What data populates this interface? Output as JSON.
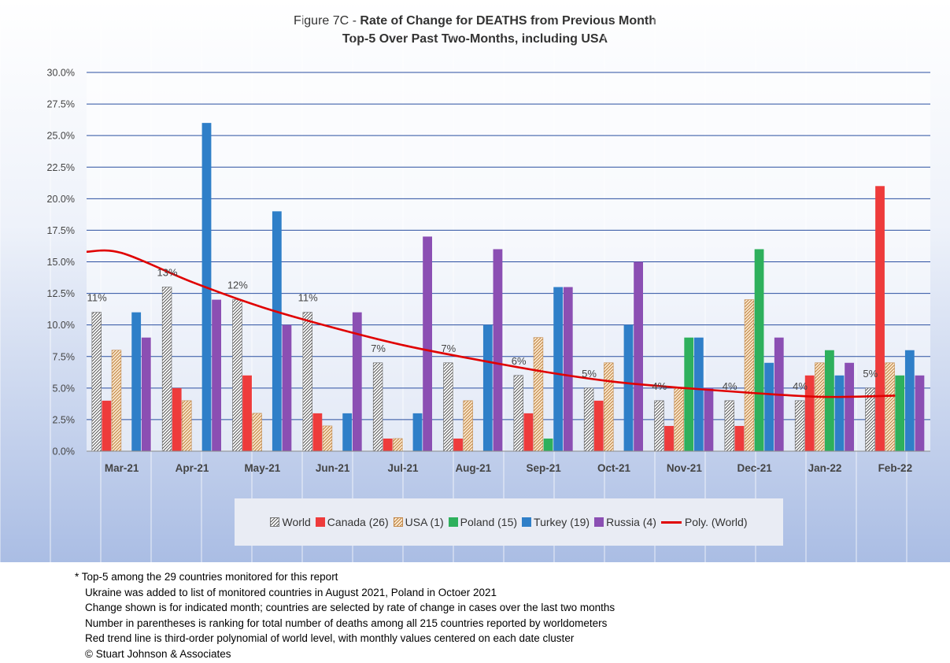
{
  "chart_data": {
    "type": "bar",
    "title_prefix": "Figure 7C - ",
    "title_main": "Rate of Change for DEATHS from Previous Month",
    "subtitle": "Top-5 Over Past Two-Months, including USA",
    "categories": [
      "Mar-21",
      "Apr-21",
      "May-21",
      "Jun-21",
      "Jul-21",
      "Aug-21",
      "Sep-21",
      "Oct-21",
      "Nov-21",
      "Dec-21",
      "Jan-22",
      "Feb-22"
    ],
    "y_ticks": [
      "0.0%",
      "2.5%",
      "5.0%",
      "7.5%",
      "10.0%",
      "12.5%",
      "15.0%",
      "17.5%",
      "20.0%",
      "22.5%",
      "25.0%",
      "27.5%",
      "30.0%"
    ],
    "ylim": [
      0,
      30
    ],
    "grid": true,
    "legend_position": "bottom",
    "series": [
      {
        "name": "World",
        "color": "#9a9a9a",
        "pattern": "hatch",
        "values": [
          11,
          13,
          12,
          11,
          7,
          7,
          6,
          5,
          4,
          4,
          4,
          5
        ]
      },
      {
        "name": "Canada (26)",
        "color": "#ee3b3b",
        "values": [
          4,
          5,
          6,
          3,
          1,
          1,
          3,
          4,
          2,
          2,
          6,
          21
        ]
      },
      {
        "name": "USA (1)",
        "color": "#e8b27c",
        "pattern": "hatch-warm",
        "values": [
          8,
          4,
          3,
          2,
          1,
          4,
          9,
          7,
          5,
          12,
          7,
          7
        ]
      },
      {
        "name": "Poland (15)",
        "color": "#2eb05c",
        "values": [
          null,
          null,
          null,
          null,
          null,
          null,
          1,
          null,
          9,
          16,
          8,
          6
        ]
      },
      {
        "name": "Turkey (19)",
        "color": "#2f7fc8",
        "values": [
          11,
          26,
          19,
          3,
          3,
          10,
          13,
          10,
          9,
          7,
          6,
          8
        ]
      },
      {
        "name": "Russia (4)",
        "color": "#8b4fb3",
        "values": [
          9,
          12,
          10,
          11,
          17,
          16,
          13,
          15,
          5,
          9,
          7,
          6
        ]
      }
    ],
    "data_labels": [
      "11%",
      "13%",
      "12%",
      "11%",
      "7%",
      "7%",
      "6%",
      "5%",
      "4%",
      "4%",
      "4%",
      "5%"
    ],
    "trendline": {
      "name": "Poly. (World)",
      "color": "#e00000",
      "values": [
        15.7,
        13.4,
        11.4,
        9.8,
        8.4,
        7.3,
        6.3,
        5.5,
        5.0,
        4.6,
        4.3,
        4.4
      ],
      "extends_from_edge": 15.8
    }
  },
  "notes": [
    "* Top-5 among the 29 countries monitored for this report",
    "Ukraine was added to list of monitored countries in August 2021, Poland in Octoer 2021",
    "Change shown is for indicated month; countries are selected by rate of change in cases over the last two months",
    "Number in parentheses is ranking for total number of deaths among all 215 countries reported by worldometers",
    "Red trend line is third-order polynomial of world level, with monthly values centered on each date cluster",
    "© Stuart Johnson & Associates"
  ]
}
